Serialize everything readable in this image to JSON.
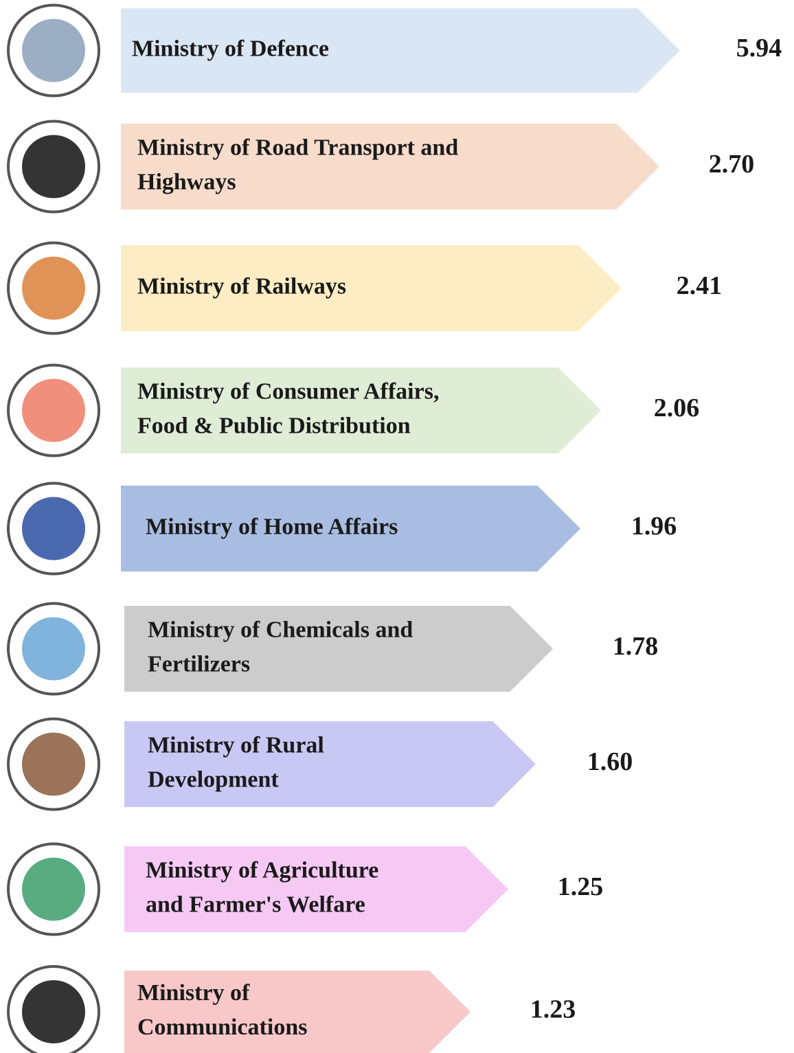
{
  "items": [
    {
      "label_lines": [
        "Ministry of Defence"
      ],
      "value": "5.94"
    },
    {
      "label_lines": [
        "Ministry of Road Transport and",
        "Highways"
      ],
      "value": "2.70"
    },
    {
      "label_lines": [
        "Ministry of Railways"
      ],
      "value": "2.41"
    },
    {
      "label_lines": [
        "Ministry of Consumer Affairs,",
        "Food & Public Distribution"
      ],
      "value": "2.06"
    },
    {
      "label_lines": [
        "Ministry of Home Affairs"
      ],
      "value": "1.96"
    },
    {
      "label_lines": [
        "Ministry of Chemicals and",
        "Fertilizers"
      ],
      "value": "1.78"
    },
    {
      "label_lines": [
        "Ministry of Rural",
        "Development"
      ],
      "value": "1.60"
    },
    {
      "label_lines": [
        "Ministry of Agriculture",
        "and Farmer's Welfare"
      ],
      "value": "1.25"
    },
    {
      "label_lines": [
        "Ministry of",
        "Communications"
      ],
      "value": "1.23"
    }
  ]
}
